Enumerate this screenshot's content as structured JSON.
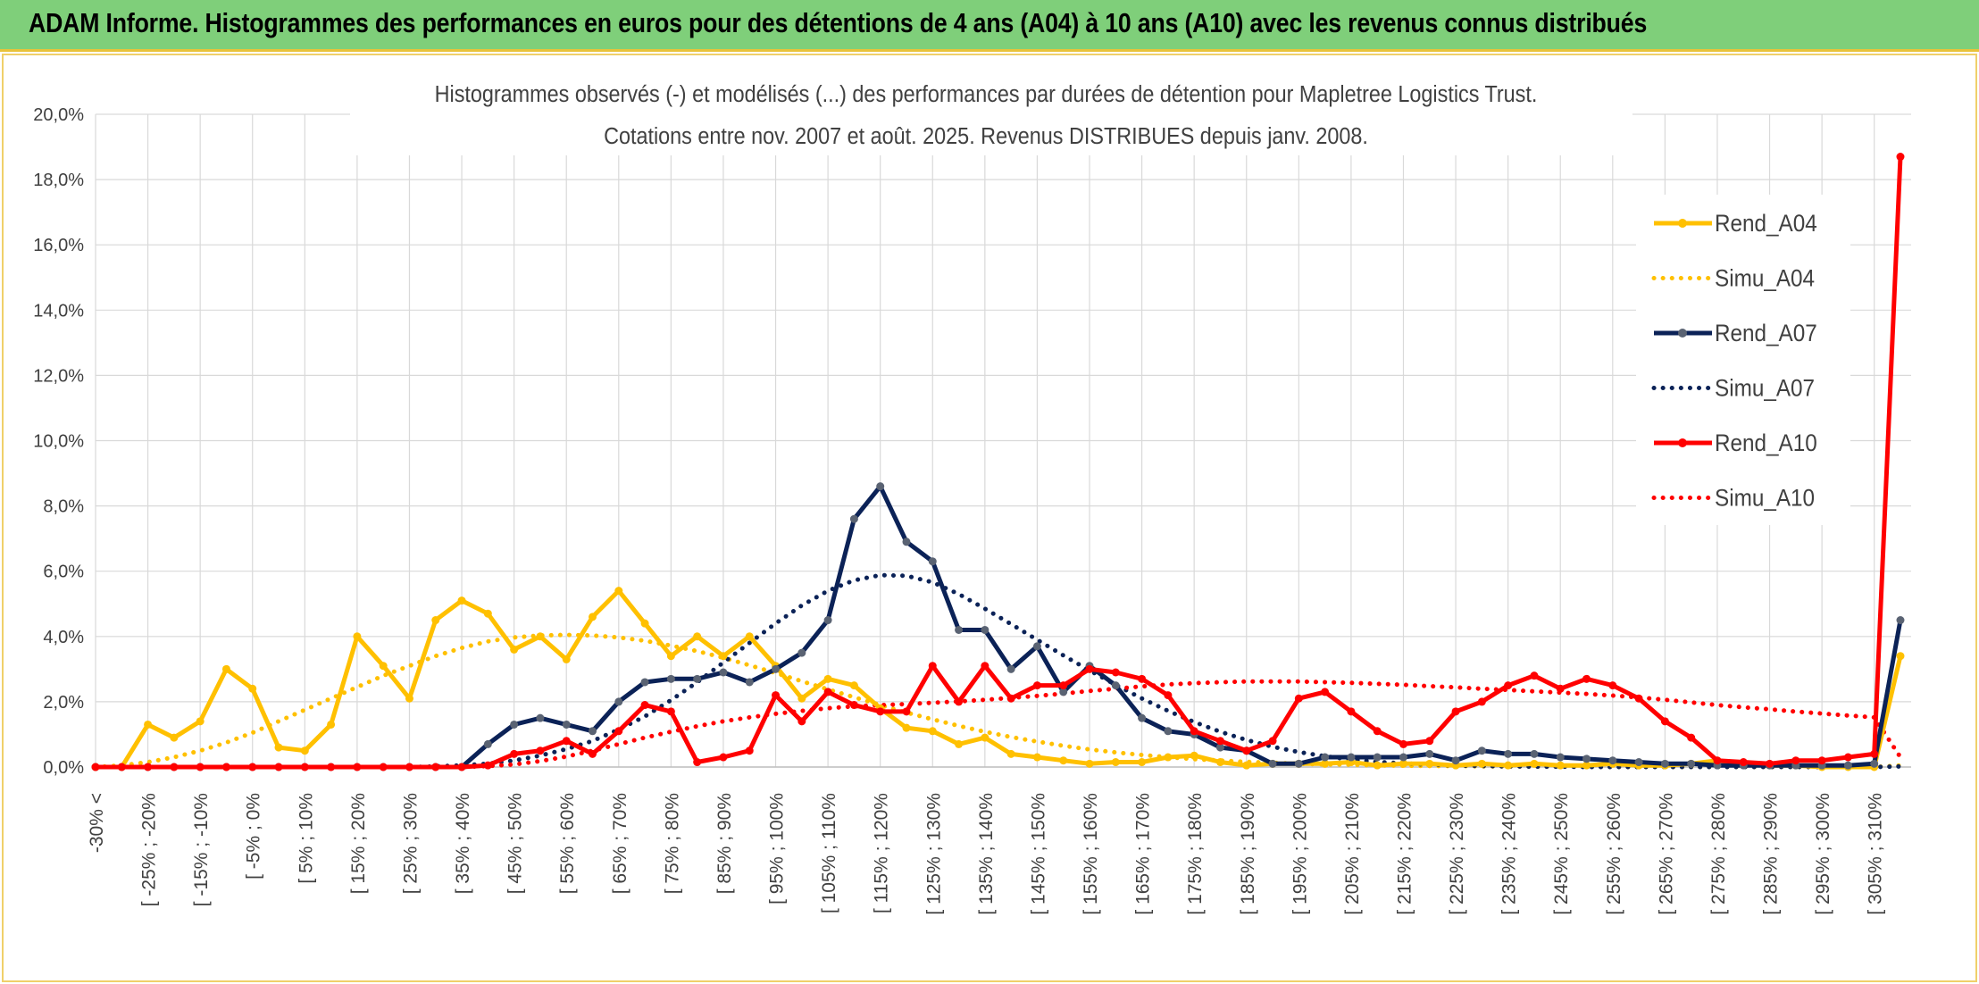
{
  "header": {
    "title": "ADAM Informe. Histogrammes des performances en euros pour des détentions de 4 ans (A04) à 10 ans (A10) avec les revenus connus distribués"
  },
  "colors": {
    "header_bg": "#7fcf7a",
    "A04": "#ffc000",
    "A07": "#0b2257",
    "A10": "#ff0000",
    "grid": "#d9d9d9"
  },
  "chart_data": {
    "type": "line",
    "title_line1": "Histogrammes observés (-) et modélisés (...) des performances par durées de détention pour Mapletree Logistics Trust.",
    "title_line2": "Cotations entre nov. 2007 et août. 2025. Revenus DISTRIBUES depuis janv. 2008.",
    "xlabel": "",
    "ylabel": "",
    "ylim": [
      0,
      20
    ],
    "y_ticks": [
      "0,0%",
      "2,0%",
      "4,0%",
      "6,0%",
      "8,0%",
      "10,0%",
      "12,0%",
      "14,0%",
      "16,0%",
      "18,0%",
      "20,0%"
    ],
    "grid": true,
    "legend_position": "right",
    "x_tick_labels": [
      "-30% <",
      "[ -25% ; -20%",
      "[ -15% ; -10%",
      "[ -5% ; 0%",
      "[ 5% ; 10%",
      "[ 15% ; 20%",
      "[ 25% ; 30%",
      "[ 35% ; 40%",
      "[ 45% ; 50%",
      "[ 55% ; 60%",
      "[ 65% ; 70%",
      "[ 75% ; 80%",
      "[ 85% ; 90%",
      "[ 95% ; 100%",
      "[ 105% ; 110%",
      "[ 115% ; 120%",
      "[ 125% ; 130%",
      "[ 135% ; 140%",
      "[ 145% ; 150%",
      "[ 155% ; 160%",
      "[ 165% ; 170%",
      "[ 175% ; 180%",
      "[ 185% ; 190%",
      "[ 195% ; 200%",
      "[ 205% ; 210%",
      "[ 215% ; 220%",
      "[ 225% ; 230%",
      "[ 235% ; 240%",
      "[ 245% ; 250%",
      "[ 255% ; 260%",
      "[ 265% ; 270%",
      "[ 275% ; 280%",
      "[ 285% ; 290%",
      "[ 295% ; 300%",
      "[ 305% ; 310%"
    ],
    "series": [
      {
        "name": "Rend_A04",
        "style": "solid",
        "color": "#ffc000",
        "values": [
          0,
          0,
          1.3,
          0.9,
          1.4,
          3.0,
          2.4,
          0.6,
          0.5,
          1.3,
          4.0,
          3.1,
          2.1,
          4.5,
          5.1,
          4.7,
          3.6,
          4.0,
          3.3,
          4.6,
          5.4,
          4.4,
          3.4,
          4.0,
          3.4,
          4.0,
          3.1,
          2.1,
          2.7,
          2.5,
          1.8,
          1.2,
          1.1,
          0.7,
          0.9,
          0.4,
          0.3,
          0.2,
          0.1,
          0.15,
          0.15,
          0.3,
          0.35,
          0.15,
          0.05,
          0.1,
          0.1,
          0.1,
          0.15,
          0.05,
          0.1,
          0.1,
          0.05,
          0.1,
          0.05,
          0.1,
          0.05,
          0.05,
          0.1,
          0.05,
          0.05,
          0.1,
          0.2,
          0.1,
          0.05,
          0.05,
          0,
          0,
          0,
          3.4
        ]
      },
      {
        "name": "Simu_A04",
        "style": "dotted",
        "color": "#ffc000",
        "values": [
          0,
          0.05,
          0.15,
          0.3,
          0.5,
          0.75,
          1.05,
          1.4,
          1.75,
          2.1,
          2.45,
          2.8,
          3.1,
          3.4,
          3.65,
          3.85,
          3.97,
          4.03,
          4.05,
          4.03,
          3.97,
          3.87,
          3.72,
          3.55,
          3.35,
          3.12,
          2.88,
          2.63,
          2.38,
          2.14,
          1.9,
          1.67,
          1.46,
          1.26,
          1.08,
          0.92,
          0.78,
          0.65,
          0.54,
          0.45,
          0.37,
          0.3,
          0.24,
          0.2,
          0.16,
          0.13,
          0.1,
          0.08,
          0.07,
          0.05,
          0.04,
          0.03,
          0.03,
          0.02,
          0.02,
          0.01,
          0.01,
          0.01,
          0,
          0,
          0,
          0,
          0,
          0,
          0,
          0,
          0,
          0,
          0,
          0.05
        ]
      },
      {
        "name": "Rend_A07",
        "style": "solid",
        "color": "#0b2257",
        "values": [
          0,
          0,
          0,
          0,
          0,
          0,
          0,
          0,
          0,
          0,
          0,
          0,
          0,
          0,
          0,
          0.7,
          1.3,
          1.5,
          1.3,
          1.1,
          2.0,
          2.6,
          2.7,
          2.7,
          2.9,
          2.6,
          3.0,
          3.5,
          4.5,
          7.6,
          8.6,
          6.9,
          6.3,
          4.2,
          4.2,
          3.0,
          3.7,
          2.3,
          3.1,
          2.5,
          1.5,
          1.1,
          1.0,
          0.6,
          0.5,
          0.1,
          0.1,
          0.3,
          0.3,
          0.3,
          0.3,
          0.4,
          0.2,
          0.5,
          0.4,
          0.4,
          0.3,
          0.25,
          0.2,
          0.15,
          0.1,
          0.1,
          0.05,
          0.05,
          0.05,
          0.05,
          0.05,
          0.05,
          0.1,
          4.5
        ]
      },
      {
        "name": "Simu_A07",
        "style": "dotted",
        "color": "#0b2257",
        "values": [
          0,
          0,
          0,
          0,
          0,
          0,
          0,
          0,
          0,
          0,
          0,
          0,
          0,
          0.02,
          0.05,
          0.1,
          0.2,
          0.35,
          0.55,
          0.8,
          1.15,
          1.55,
          2.05,
          2.6,
          3.2,
          3.8,
          4.4,
          4.95,
          5.4,
          5.72,
          5.88,
          5.86,
          5.66,
          5.3,
          4.85,
          4.38,
          3.9,
          3.42,
          2.96,
          2.52,
          2.1,
          1.72,
          1.38,
          1.08,
          0.83,
          0.62,
          0.46,
          0.33,
          0.23,
          0.16,
          0.11,
          0.07,
          0.05,
          0.03,
          0.02,
          0.01,
          0.01,
          0,
          0,
          0,
          0,
          0,
          0,
          0,
          0,
          0,
          0,
          0,
          0,
          0.02
        ]
      },
      {
        "name": "Rend_A10",
        "style": "solid",
        "color": "#ff0000",
        "values": [
          0,
          0,
          0,
          0,
          0,
          0,
          0,
          0,
          0,
          0,
          0,
          0,
          0,
          0,
          0,
          0.05,
          0.4,
          0.5,
          0.8,
          0.4,
          1.1,
          1.9,
          1.7,
          0.15,
          0.3,
          0.5,
          2.2,
          1.4,
          2.3,
          1.9,
          1.7,
          1.7,
          3.1,
          2.0,
          3.1,
          2.1,
          2.5,
          2.5,
          3.0,
          2.9,
          2.7,
          2.2,
          1.1,
          0.8,
          0.5,
          0.8,
          2.1,
          2.3,
          1.7,
          1.1,
          0.7,
          0.8,
          1.7,
          2.0,
          2.5,
          2.8,
          2.4,
          2.7,
          2.5,
          2.1,
          1.4,
          0.9,
          0.2,
          0.15,
          0.1,
          0.2,
          0.2,
          0.3,
          0.4,
          18.7
        ]
      },
      {
        "name": "Simu_A10",
        "style": "dotted",
        "color": "#ff0000",
        "values": [
          0,
          0,
          0,
          0,
          0,
          0,
          0,
          0,
          0,
          0,
          0,
          0,
          0,
          0,
          0,
          0.03,
          0.08,
          0.18,
          0.32,
          0.5,
          0.7,
          0.9,
          1.08,
          1.25,
          1.4,
          1.52,
          1.63,
          1.72,
          1.8,
          1.86,
          1.9,
          1.93,
          1.97,
          2.01,
          2.06,
          2.12,
          2.18,
          2.25,
          2.33,
          2.4,
          2.47,
          2.53,
          2.57,
          2.6,
          2.62,
          2.62,
          2.62,
          2.6,
          2.58,
          2.55,
          2.52,
          2.48,
          2.44,
          2.4,
          2.36,
          2.32,
          2.28,
          2.24,
          2.19,
          2.13,
          2.06,
          1.98,
          1.9,
          1.83,
          1.77,
          1.7,
          1.64,
          1.58,
          1.52,
          0.3
        ]
      }
    ]
  }
}
